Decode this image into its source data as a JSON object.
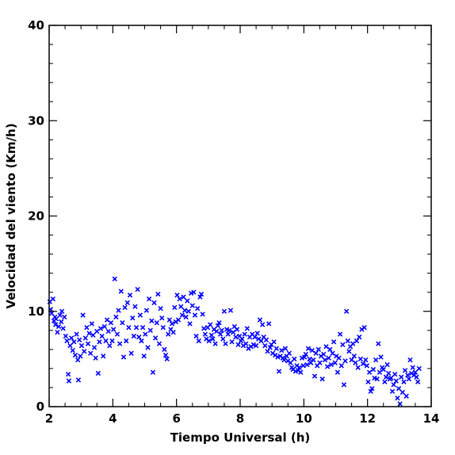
{
  "chart_data": {
    "type": "scatter",
    "title": "",
    "xlabel": "Tiempo Universal (h)",
    "ylabel": "Velocidad del viento (Km/h)",
    "xlim": [
      2,
      14
    ],
    "ylim": [
      0,
      40
    ],
    "x_ticks": [
      2,
      4,
      6,
      8,
      10,
      12,
      14
    ],
    "x_tick_labels": [
      "2",
      "4",
      "6",
      "8",
      "10",
      "12",
      "14"
    ],
    "y_ticks": [
      0,
      10,
      20,
      30,
      40
    ],
    "y_tick_labels": [
      "0",
      "10",
      "20",
      "30",
      "40"
    ],
    "x_minor_step": 0.5,
    "y_minor_step": 2,
    "grid": false,
    "marker": "x",
    "color": "#0000ff",
    "series": [
      {
        "points": [
          [
            2.02,
            11.0
          ],
          [
            2.05,
            10.2
          ],
          [
            2.08,
            9.8
          ],
          [
            2.12,
            11.3
          ],
          [
            2.15,
            9.0
          ],
          [
            2.18,
            9.4
          ],
          [
            2.2,
            8.6
          ],
          [
            2.22,
            9.2
          ],
          [
            2.26,
            7.8
          ],
          [
            2.3,
            8.4
          ],
          [
            2.34,
            9.6
          ],
          [
            2.38,
            8.9
          ],
          [
            2.4,
            10.0
          ],
          [
            2.44,
            8.2
          ],
          [
            2.48,
            9.4
          ],
          [
            2.52,
            7.4
          ],
          [
            2.56,
            6.9
          ],
          [
            2.6,
            3.4
          ],
          [
            2.62,
            2.7
          ],
          [
            2.66,
            6.4
          ],
          [
            2.7,
            7.2
          ],
          [
            2.74,
            5.9
          ],
          [
            2.78,
            6.8
          ],
          [
            2.82,
            5.4
          ],
          [
            2.86,
            7.6
          ],
          [
            2.9,
            4.9
          ],
          [
            2.92,
            2.8
          ],
          [
            2.95,
            7.0
          ],
          [
            2.98,
            5.3
          ],
          [
            3.02,
            6.4
          ],
          [
            3.06,
            9.6
          ],
          [
            3.1,
            5.8
          ],
          [
            3.14,
            7.2
          ],
          [
            3.18,
            8.3
          ],
          [
            3.22,
            6.6
          ],
          [
            3.26,
            7.7
          ],
          [
            3.3,
            5.6
          ],
          [
            3.34,
            8.7
          ],
          [
            3.38,
            7.5
          ],
          [
            3.42,
            6.2
          ],
          [
            3.46,
            5.1
          ],
          [
            3.5,
            7.9
          ],
          [
            3.54,
            3.5
          ],
          [
            3.58,
            6.8
          ],
          [
            3.62,
            8.2
          ],
          [
            3.66,
            7.4
          ],
          [
            3.7,
            5.3
          ],
          [
            3.74,
            8.4
          ],
          [
            3.78,
            6.9
          ],
          [
            3.82,
            9.1
          ],
          [
            3.86,
            7.9
          ],
          [
            3.9,
            6.4
          ],
          [
            3.94,
            8.8
          ],
          [
            3.98,
            6.9
          ],
          [
            4.02,
            8.1
          ],
          [
            4.06,
            13.4
          ],
          [
            4.1,
            9.4
          ],
          [
            4.14,
            7.6
          ],
          [
            4.18,
            10.1
          ],
          [
            4.22,
            6.6
          ],
          [
            4.26,
            12.1
          ],
          [
            4.3,
            8.8
          ],
          [
            4.34,
            5.2
          ],
          [
            4.38,
            10.4
          ],
          [
            4.42,
            6.9
          ],
          [
            4.46,
            10.9
          ],
          [
            4.5,
            8.3
          ],
          [
            4.54,
            11.7
          ],
          [
            4.58,
            5.6
          ],
          [
            4.62,
            9.3
          ],
          [
            4.66,
            7.4
          ],
          [
            4.7,
            10.5
          ],
          [
            4.74,
            8.3
          ],
          [
            4.78,
            12.3
          ],
          [
            4.82,
            7.3
          ],
          [
            4.86,
            9.6
          ],
          [
            4.9,
            6.9
          ],
          [
            4.94,
            8.3
          ],
          [
            4.98,
            5.3
          ],
          [
            5.02,
            7.6
          ],
          [
            5.06,
            10.1
          ],
          [
            5.1,
            6.2
          ],
          [
            5.14,
            11.3
          ],
          [
            5.18,
            8.0
          ],
          [
            5.22,
            9.0
          ],
          [
            5.26,
            3.6
          ],
          [
            5.3,
            10.9
          ],
          [
            5.34,
            7.2
          ],
          [
            5.38,
            8.8
          ],
          [
            5.42,
            11.8
          ],
          [
            5.46,
            6.6
          ],
          [
            5.5,
            10.3
          ],
          [
            5.54,
            9.3
          ],
          [
            5.58,
            8.3
          ],
          [
            5.62,
            6.0
          ],
          [
            5.66,
            5.4
          ],
          [
            5.7,
            5.0
          ],
          [
            5.74,
            7.6
          ],
          [
            5.78,
            9.1
          ],
          [
            5.82,
            8.1
          ],
          [
            5.86,
            8.7
          ],
          [
            5.9,
            7.8
          ],
          [
            5.94,
            10.4
          ],
          [
            5.98,
            8.9
          ],
          [
            6.02,
            11.7
          ],
          [
            6.06,
            9.1
          ],
          [
            6.1,
            11.3
          ],
          [
            6.14,
            10.5
          ],
          [
            6.18,
            9.6
          ],
          [
            6.22,
            11.5
          ],
          [
            6.26,
            10.1
          ],
          [
            6.3,
            9.4
          ],
          [
            6.34,
            11.1
          ],
          [
            6.38,
            10.0
          ],
          [
            6.42,
            8.7
          ],
          [
            6.46,
            11.9
          ],
          [
            6.5,
            10.6
          ],
          [
            6.54,
            12.0
          ],
          [
            6.58,
            9.6
          ],
          [
            6.62,
            7.4
          ],
          [
            6.66,
            10.3
          ],
          [
            6.7,
            6.9
          ],
          [
            6.74,
            11.5
          ],
          [
            6.78,
            11.8
          ],
          [
            6.82,
            9.7
          ],
          [
            6.86,
            8.2
          ],
          [
            6.9,
            7.6
          ],
          [
            6.94,
            7.1
          ],
          [
            6.98,
            8.3
          ],
          [
            7.02,
            6.9
          ],
          [
            7.06,
            8.6
          ],
          [
            7.1,
            7.5
          ],
          [
            7.14,
            7.1
          ],
          [
            7.18,
            8.1
          ],
          [
            7.22,
            6.6
          ],
          [
            7.26,
            7.9
          ],
          [
            7.3,
            8.5
          ],
          [
            7.34,
            8.8
          ],
          [
            7.38,
            7.6
          ],
          [
            7.42,
            8.0
          ],
          [
            7.46,
            7.1
          ],
          [
            7.5,
            10.0
          ],
          [
            7.54,
            6.6
          ],
          [
            7.58,
            8.1
          ],
          [
            7.62,
            7.6
          ],
          [
            7.66,
            8.0
          ],
          [
            7.7,
            10.1
          ],
          [
            7.74,
            6.8
          ],
          [
            7.78,
            7.8
          ],
          [
            7.82,
            8.4
          ],
          [
            7.86,
            7.3
          ],
          [
            7.9,
            8.1
          ],
          [
            7.94,
            6.5
          ],
          [
            7.98,
            7.4
          ],
          [
            8.02,
            6.9
          ],
          [
            8.06,
            7.1
          ],
          [
            8.1,
            6.4
          ],
          [
            8.14,
            7.6
          ],
          [
            8.18,
            6.6
          ],
          [
            8.22,
            8.2
          ],
          [
            8.26,
            6.1
          ],
          [
            8.3,
            7.3
          ],
          [
            8.34,
            6.3
          ],
          [
            8.38,
            7.6
          ],
          [
            8.42,
            6.5
          ],
          [
            8.46,
            7.3
          ],
          [
            8.5,
            6.4
          ],
          [
            8.54,
            7.7
          ],
          [
            8.58,
            7.1
          ],
          [
            8.62,
            9.1
          ],
          [
            8.66,
            6.9
          ],
          [
            8.7,
            8.6
          ],
          [
            8.74,
            7.3
          ],
          [
            8.78,
            6.4
          ],
          [
            8.82,
            7.0
          ],
          [
            8.86,
            5.8
          ],
          [
            8.9,
            8.7
          ],
          [
            8.94,
            6.2
          ],
          [
            8.98,
            6.5
          ],
          [
            9.02,
            5.6
          ],
          [
            9.06,
            6.8
          ],
          [
            9.1,
            5.4
          ],
          [
            9.14,
            6.1
          ],
          [
            9.18,
            5.2
          ],
          [
            9.22,
            3.7
          ],
          [
            9.26,
            5.3
          ],
          [
            9.3,
            5.9
          ],
          [
            9.34,
            5.1
          ],
          [
            9.38,
            4.9
          ],
          [
            9.42,
            6.1
          ],
          [
            9.46,
            5.3
          ],
          [
            9.5,
            4.8
          ],
          [
            9.54,
            5.6
          ],
          [
            9.58,
            4.6
          ],
          [
            9.62,
            4.1
          ],
          [
            9.66,
            3.9
          ],
          [
            9.7,
            5.0
          ],
          [
            9.74,
            3.7
          ],
          [
            9.78,
            4.3
          ],
          [
            9.82,
            3.8
          ],
          [
            9.86,
            4.1
          ],
          [
            9.9,
            3.6
          ],
          [
            9.94,
            5.1
          ],
          [
            9.98,
            4.3
          ],
          [
            10.02,
            5.2
          ],
          [
            10.06,
            5.5
          ],
          [
            10.1,
            4.4
          ],
          [
            10.14,
            6.1
          ],
          [
            10.18,
            5.0
          ],
          [
            10.22,
            4.6
          ],
          [
            10.26,
            5.9
          ],
          [
            10.3,
            4.9
          ],
          [
            10.34,
            3.2
          ],
          [
            10.38,
            5.6
          ],
          [
            10.42,
            4.3
          ],
          [
            10.46,
            6.0
          ],
          [
            10.5,
            4.6
          ],
          [
            10.54,
            5.3
          ],
          [
            10.58,
            2.9
          ],
          [
            10.62,
            5.5
          ],
          [
            10.66,
            4.9
          ],
          [
            10.7,
            6.3
          ],
          [
            10.74,
            4.2
          ],
          [
            10.78,
            5.1
          ],
          [
            10.82,
            6.0
          ],
          [
            10.86,
            4.4
          ],
          [
            10.9,
            5.6
          ],
          [
            10.94,
            6.8
          ],
          [
            10.98,
            4.6
          ],
          [
            11.02,
            5.3
          ],
          [
            11.06,
            3.6
          ],
          [
            11.1,
            5.1
          ],
          [
            11.14,
            7.6
          ],
          [
            11.18,
            4.3
          ],
          [
            11.22,
            6.5
          ],
          [
            11.26,
            2.3
          ],
          [
            11.3,
            4.8
          ],
          [
            11.34,
            10.0
          ],
          [
            11.38,
            6.9
          ],
          [
            11.42,
            5.8
          ],
          [
            11.46,
            6.3
          ],
          [
            11.5,
            4.9
          ],
          [
            11.54,
            6.6
          ],
          [
            11.58,
            5.3
          ],
          [
            11.62,
            4.6
          ],
          [
            11.66,
            6.9
          ],
          [
            11.7,
            4.1
          ],
          [
            11.74,
            7.3
          ],
          [
            11.78,
            5.0
          ],
          [
            11.82,
            8.1
          ],
          [
            11.86,
            4.5
          ],
          [
            11.9,
            8.3
          ],
          [
            11.94,
            4.9
          ],
          [
            11.98,
            4.3
          ],
          [
            12.02,
            2.6
          ],
          [
            12.06,
            3.6
          ],
          [
            12.1,
            1.6
          ],
          [
            12.14,
            1.9
          ],
          [
            12.18,
            3.9
          ],
          [
            12.22,
            3.0
          ],
          [
            12.26,
            4.9
          ],
          [
            12.3,
            2.9
          ],
          [
            12.34,
            6.6
          ],
          [
            12.38,
            3.6
          ],
          [
            12.42,
            5.2
          ],
          [
            12.46,
            4.1
          ],
          [
            12.5,
            3.9
          ],
          [
            12.54,
            2.6
          ],
          [
            12.58,
            3.1
          ],
          [
            12.62,
            4.4
          ],
          [
            12.66,
            3.5
          ],
          [
            12.7,
            2.9
          ],
          [
            12.74,
            3.0
          ],
          [
            12.78,
            1.6
          ],
          [
            12.82,
            2.3
          ],
          [
            12.86,
            3.4
          ],
          [
            12.9,
            2.7
          ],
          [
            12.94,
            0.9
          ],
          [
            12.98,
            1.9
          ],
          [
            13.02,
            0.3
          ],
          [
            13.06,
            3.1
          ],
          [
            13.1,
            1.5
          ],
          [
            13.14,
            2.6
          ],
          [
            13.18,
            3.8
          ],
          [
            13.22,
            1.1
          ],
          [
            13.26,
            3.3
          ],
          [
            13.3,
            2.9
          ],
          [
            13.34,
            4.9
          ],
          [
            13.38,
            3.5
          ],
          [
            13.42,
            4.1
          ],
          [
            13.46,
            3.3
          ],
          [
            13.5,
            3.6
          ],
          [
            13.54,
            3.1
          ],
          [
            13.58,
            2.6
          ],
          [
            13.62,
            4.0
          ]
        ]
      }
    ]
  }
}
